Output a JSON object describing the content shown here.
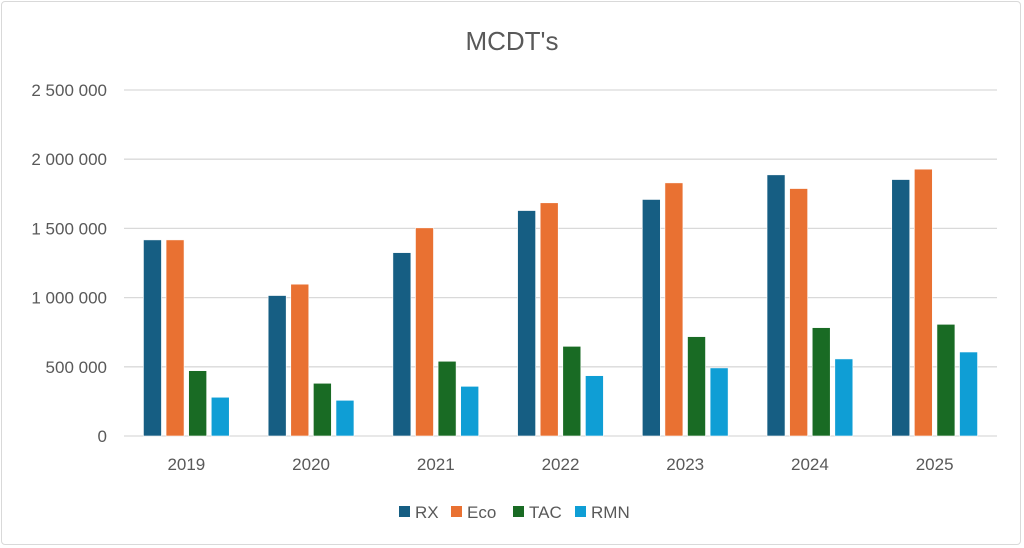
{
  "chart_data": {
    "type": "bar",
    "title": "MCDT's",
    "xlabel": "",
    "ylabel": "",
    "categories": [
      "2019",
      "2020",
      "2021",
      "2022",
      "2023",
      "2024",
      "2025"
    ],
    "series": [
      {
        "name": "RX",
        "color": "#165e83",
        "values": [
          1417000,
          1015000,
          1325000,
          1629000,
          1709000,
          1887000,
          1853000
        ]
      },
      {
        "name": "Eco",
        "color": "#e97132",
        "values": [
          1417000,
          1097000,
          1504000,
          1685000,
          1829000,
          1788000,
          1928000
        ]
      },
      {
        "name": "TAC",
        "color": "#196b24",
        "values": [
          472000,
          381000,
          540000,
          648000,
          718000,
          783000,
          807000
        ]
      },
      {
        "name": "RMN",
        "color": "#0f9ed5",
        "values": [
          280000,
          258000,
          359000,
          436000,
          492000,
          557000,
          607000
        ]
      }
    ],
    "ylim": [
      0,
      2500000
    ],
    "yticks": [
      0,
      500000,
      1000000,
      1500000,
      2000000,
      2500000
    ],
    "ytick_labels": [
      "0",
      "500 000",
      "1 000 000",
      "1 500 000",
      "2 000 000",
      "2 500 000"
    ],
    "grid": true,
    "legend_position": "bottom"
  }
}
